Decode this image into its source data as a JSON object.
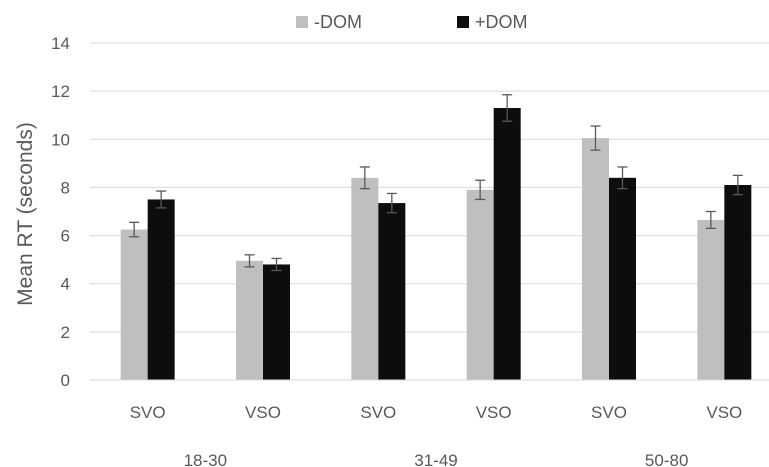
{
  "chart_data": {
    "type": "bar",
    "title": "",
    "xlabel": "",
    "ylabel": "Mean RT (seconds)",
    "ylim": [
      0,
      14
    ],
    "yticks": [
      0,
      2,
      4,
      6,
      8,
      10,
      12,
      14
    ],
    "grid": true,
    "legend_position": "top",
    "groups": [
      "18-30",
      "31-49",
      "50-80"
    ],
    "categories": [
      "SVO",
      "VSO",
      "SVO",
      "VSO",
      "SVO",
      "VSO"
    ],
    "series": [
      {
        "name": "-DOM",
        "color": "#bfbfbf",
        "values": [
          6.25,
          4.95,
          8.4,
          7.9,
          10.05,
          6.65
        ],
        "errors": [
          0.3,
          0.25,
          0.45,
          0.4,
          0.5,
          0.35
        ]
      },
      {
        "name": "+DOM",
        "color": "#0d0d0d",
        "values": [
          7.5,
          4.8,
          7.35,
          11.3,
          8.4,
          8.1
        ],
        "errors": [
          0.35,
          0.25,
          0.4,
          0.55,
          0.45,
          0.4
        ]
      }
    ]
  }
}
